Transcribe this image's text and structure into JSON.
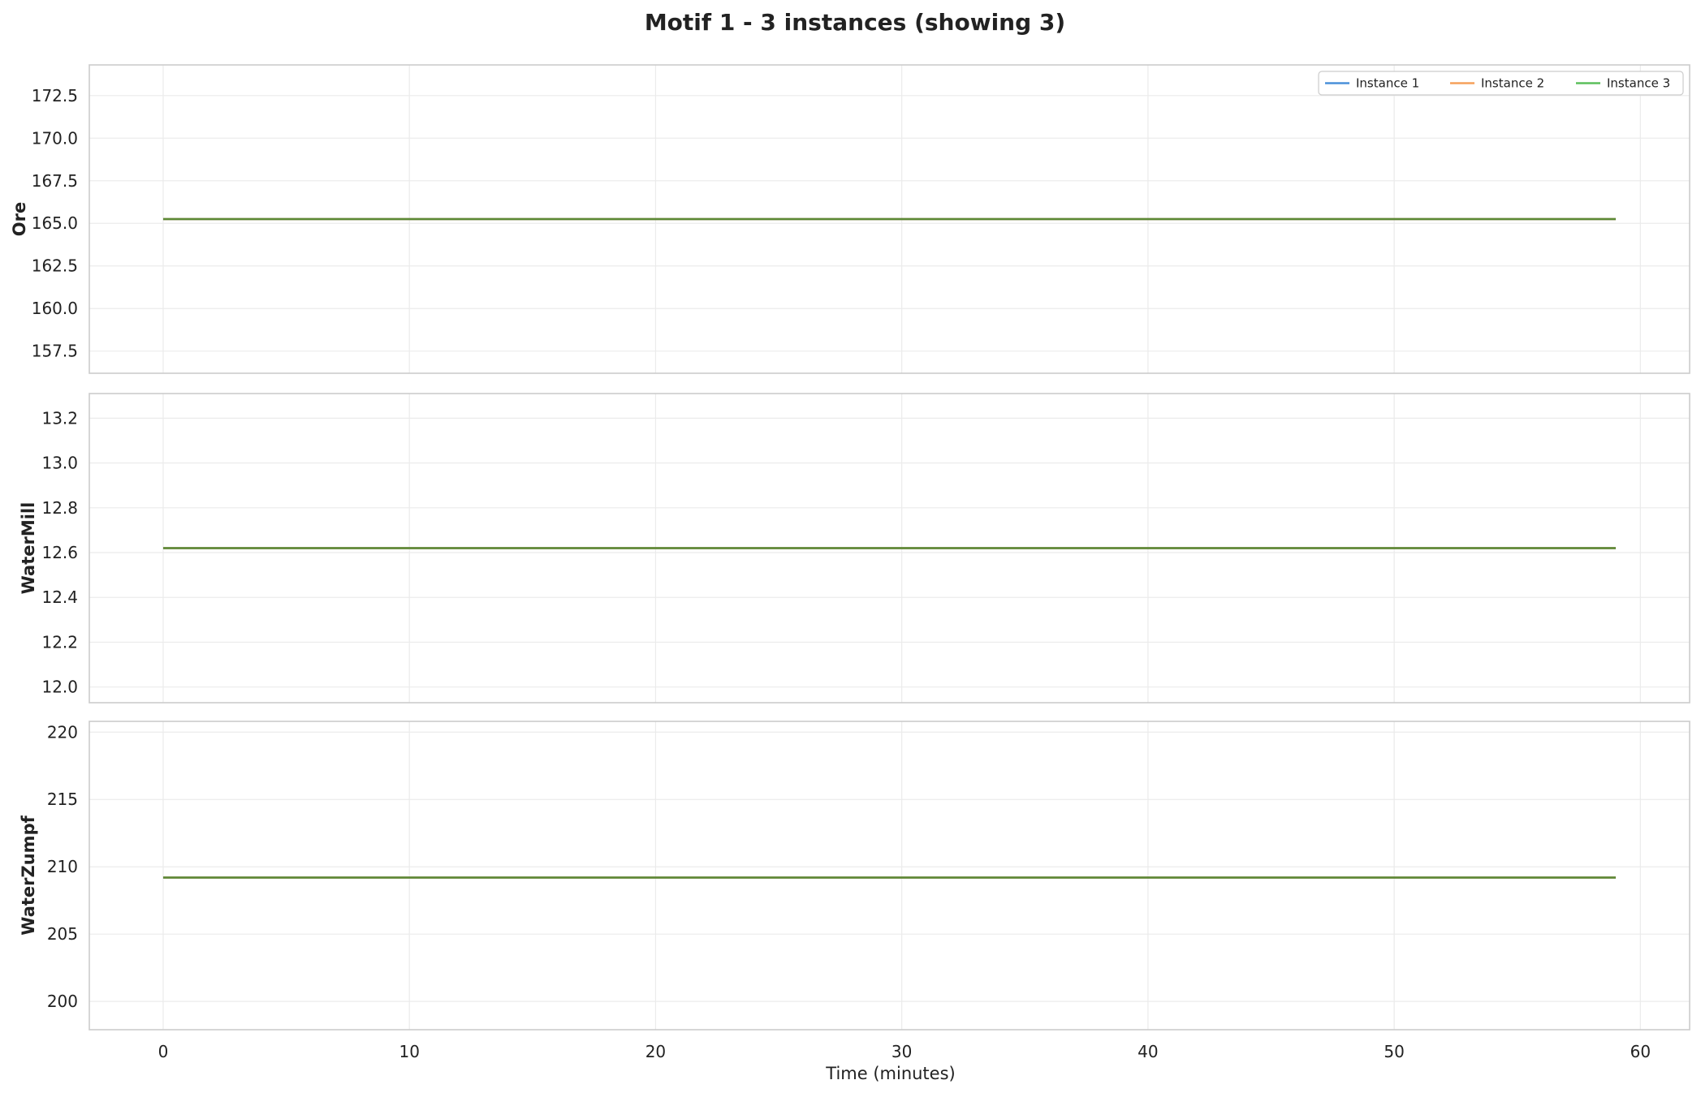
{
  "chart_data": {
    "type": "line",
    "title": "Motif 1 - 3 instances (showing 3)",
    "xlabel": "Time (minutes)",
    "xlim": [
      -3,
      62
    ],
    "xticks": [
      0,
      10,
      20,
      30,
      40,
      50,
      60
    ],
    "grid": true,
    "legend": {
      "placement": "top-right",
      "entries": [
        "Instance 1",
        "Instance 2",
        "Instance 3"
      ]
    },
    "series_colors": [
      "#4a90d9",
      "#f5a05a",
      "#5cbf5c"
    ],
    "overlap_color": "#5b8a35",
    "panels": [
      {
        "ylabel": "Ore",
        "ylim": [
          156.2,
          174.3
        ],
        "yticks": [
          "157.5",
          "160.0",
          "162.5",
          "165.0",
          "167.5",
          "170.0",
          "172.5"
        ],
        "series": [
          {
            "name": "Instance 1",
            "x": [
              0,
              59
            ],
            "values": [
              165.25,
              165.25
            ]
          },
          {
            "name": "Instance 2",
            "x": [
              0,
              59
            ],
            "values": [
              165.25,
              165.25
            ]
          },
          {
            "name": "Instance 3",
            "x": [
              0,
              59
            ],
            "values": [
              165.25,
              165.25
            ]
          }
        ]
      },
      {
        "ylabel": "WaterMill",
        "ylim": [
          11.93,
          13.31
        ],
        "yticks": [
          "12.0",
          "12.2",
          "12.4",
          "12.6",
          "12.8",
          "13.0",
          "13.2"
        ],
        "series": [
          {
            "name": "Instance 1",
            "x": [
              0,
              59
            ],
            "values": [
              12.62,
              12.62
            ]
          },
          {
            "name": "Instance 2",
            "x": [
              0,
              59
            ],
            "values": [
              12.62,
              12.62
            ]
          },
          {
            "name": "Instance 3",
            "x": [
              0,
              59
            ],
            "values": [
              12.62,
              12.62
            ]
          }
        ]
      },
      {
        "ylabel": "WaterZumpf",
        "ylim": [
          197.9,
          220.8
        ],
        "yticks": [
          "200",
          "205",
          "210",
          "215",
          "220"
        ],
        "series": [
          {
            "name": "Instance 1",
            "x": [
              0,
              59
            ],
            "values": [
              209.2,
              209.2
            ]
          },
          {
            "name": "Instance 2",
            "x": [
              0,
              59
            ],
            "values": [
              209.2,
              209.2
            ]
          },
          {
            "name": "Instance 3",
            "x": [
              0,
              59
            ],
            "values": [
              209.2,
              209.2
            ]
          }
        ]
      }
    ]
  }
}
